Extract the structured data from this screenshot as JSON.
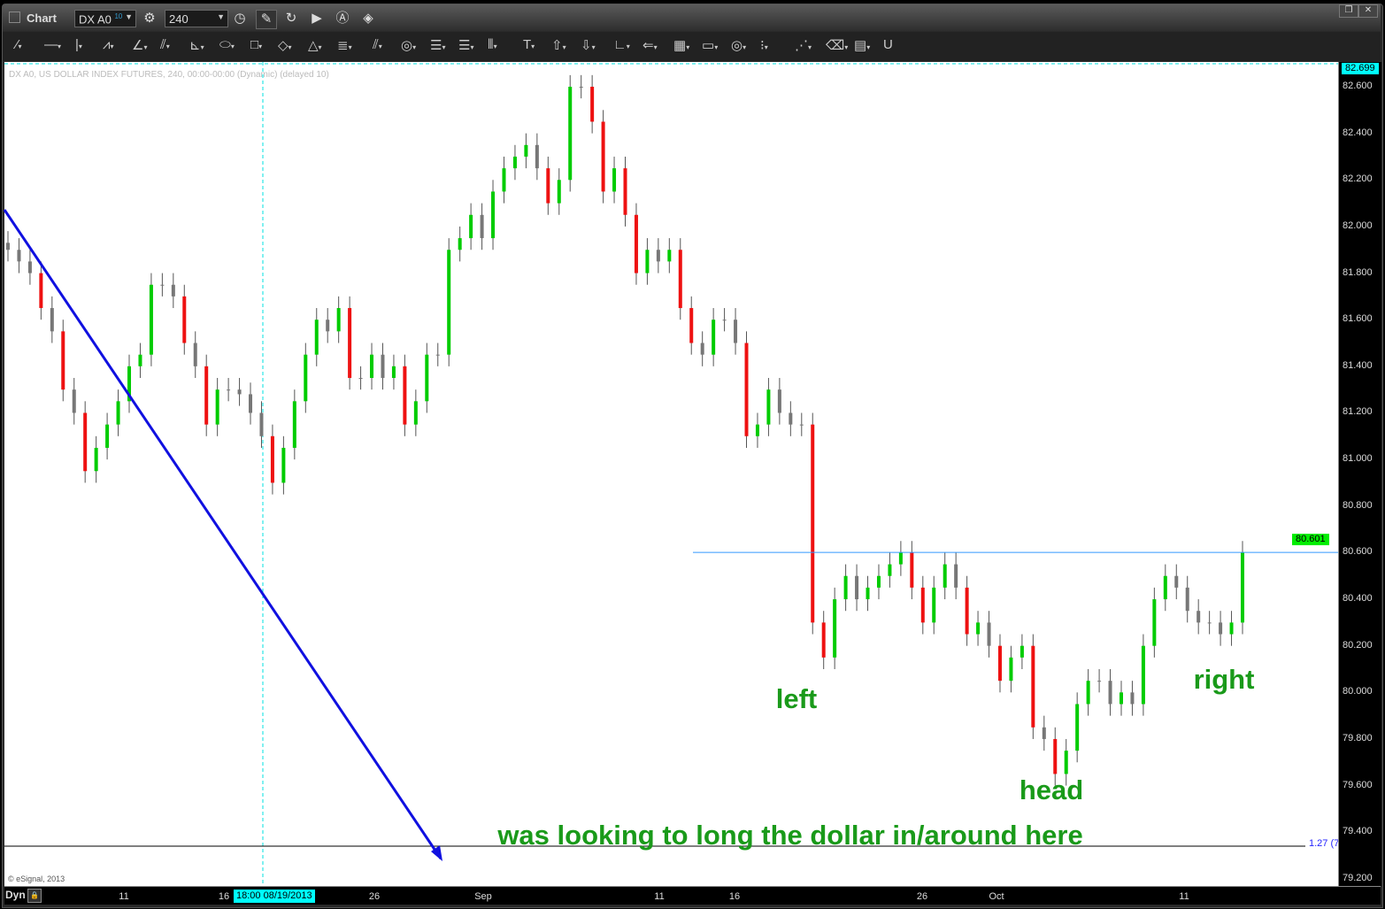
{
  "window": {
    "title": "Chart",
    "symbol": "DX A0",
    "symbol_badge": "10",
    "interval": "240"
  },
  "header_text": "DX A0, US DOLLAR INDEX FUTURES, 240, 00:00-00:00 (Dynamic) (delayed 10)",
  "copyright": "© eSignal, 2013",
  "bottom": {
    "mode": "Dyn",
    "cursor_time": "18:00 08/19/2013"
  },
  "toolbar_icons": [
    "line-tool",
    "horizontal-line-tool",
    "vertical-line-tool",
    "zigzag-tool",
    "fan-tool",
    "pitchfork-tool",
    "gann-fan-tool",
    "ellipse-tool",
    "rectangle-tool",
    "diamond-tool",
    "triangle-tool",
    "parallel-lines-tool",
    "channel-tool",
    "circles-tool",
    "fib-retracement-tool",
    "fib-extension-tool",
    "cycle-lines-tool",
    "text-tool",
    "arrow-up-tool",
    "arrow-down-tool",
    "angle-tool",
    "arrow-left-tool",
    "grid-tool",
    "mob-tool",
    "t3-tool",
    "pti-tool",
    "elliott-tool",
    "eraser-tool",
    "comments-tool",
    "magnet-tool"
  ],
  "chart_data": {
    "type": "candlestick",
    "symbol": "DX A0, US DOLLAR INDEX FUTURES",
    "interval": "240",
    "ylim": [
      79.15,
      82.72
    ],
    "y_ticks": [
      "82.600",
      "82.400",
      "82.200",
      "82.000",
      "81.800",
      "81.600",
      "81.400",
      "81.200",
      "81.000",
      "80.800",
      "80.600",
      "80.400",
      "80.200",
      "80.000",
      "79.800",
      "79.600",
      "79.400",
      "79.200"
    ],
    "x_ticks": [
      "11",
      "16",
      "26",
      "Sep",
      "11",
      "16",
      "26",
      "Oct",
      "11"
    ],
    "close": [
      81.9,
      81.85,
      81.8,
      81.65,
      81.55,
      81.3,
      81.2,
      80.95,
      81.05,
      81.15,
      81.25,
      81.4,
      81.45,
      81.75,
      81.75,
      81.7,
      81.5,
      81.4,
      81.15,
      81.3,
      81.3,
      81.28,
      81.2,
      81.1,
      80.9,
      81.05,
      81.25,
      81.45,
      81.6,
      81.55,
      81.65,
      81.35,
      81.35,
      81.45,
      81.35,
      81.4,
      81.15,
      81.25,
      81.45,
      81.45,
      81.9,
      81.95,
      82.05,
      81.95,
      82.15,
      82.25,
      82.3,
      82.35,
      82.25,
      82.1,
      82.2,
      82.6,
      82.6,
      82.45,
      82.15,
      82.25,
      82.05,
      81.8,
      81.9,
      81.85,
      81.9,
      81.65,
      81.5,
      81.45,
      81.6,
      81.6,
      81.5,
      81.1,
      81.15,
      81.3,
      81.2,
      81.15,
      81.15,
      80.3,
      80.15,
      80.4,
      80.5,
      80.4,
      80.45,
      80.5,
      80.55,
      80.6,
      80.45,
      80.3,
      80.45,
      80.55,
      80.45,
      80.25,
      80.3,
      80.2,
      80.05,
      80.15,
      80.2,
      79.85,
      79.8,
      79.65,
      79.75,
      79.95,
      80.05,
      80.05,
      79.95,
      80.0,
      79.95,
      80.2,
      80.4,
      80.5,
      80.45,
      80.35,
      80.3,
      80.3,
      80.25,
      80.3,
      80.6
    ],
    "last_price_tag": "80.601",
    "top_price_tag": "82.699",
    "horizontal_level": 80.601,
    "fib_label": "1.27 (7",
    "fib_level": 79.34,
    "colors": {
      "up": "#00cc00",
      "down": "#ee1111",
      "neutral": "#777777",
      "trendline": "#1010e0",
      "level": "#3399ff",
      "annotation": "#1a9a1a",
      "cursor": "#00ffff"
    },
    "annotations": {
      "left": "left",
      "head": "head",
      "right": "right",
      "note": "was looking to long the dollar in/around here"
    }
  }
}
